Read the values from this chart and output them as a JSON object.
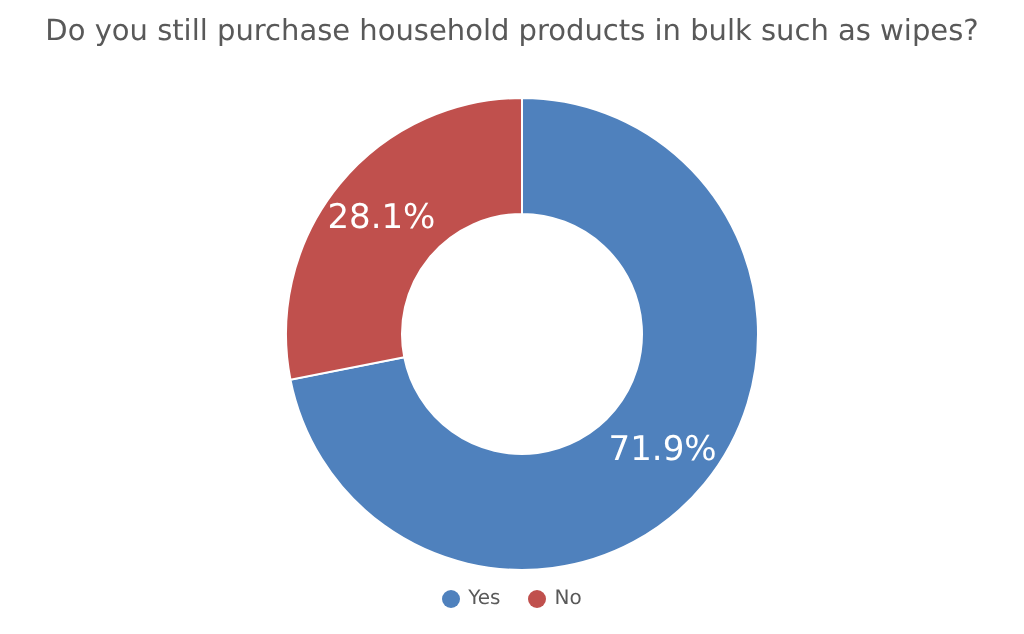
{
  "chart_data": {
    "type": "donut",
    "title": "Do you still purchase household products in bulk such as wipes?",
    "categories": [
      "Yes",
      "No"
    ],
    "values": [
      71.9,
      28.1
    ],
    "colors": [
      "#4f81bd",
      "#c0504d"
    ],
    "value_labels": [
      "71.9%",
      "28.1%"
    ],
    "legend": "bottom"
  }
}
